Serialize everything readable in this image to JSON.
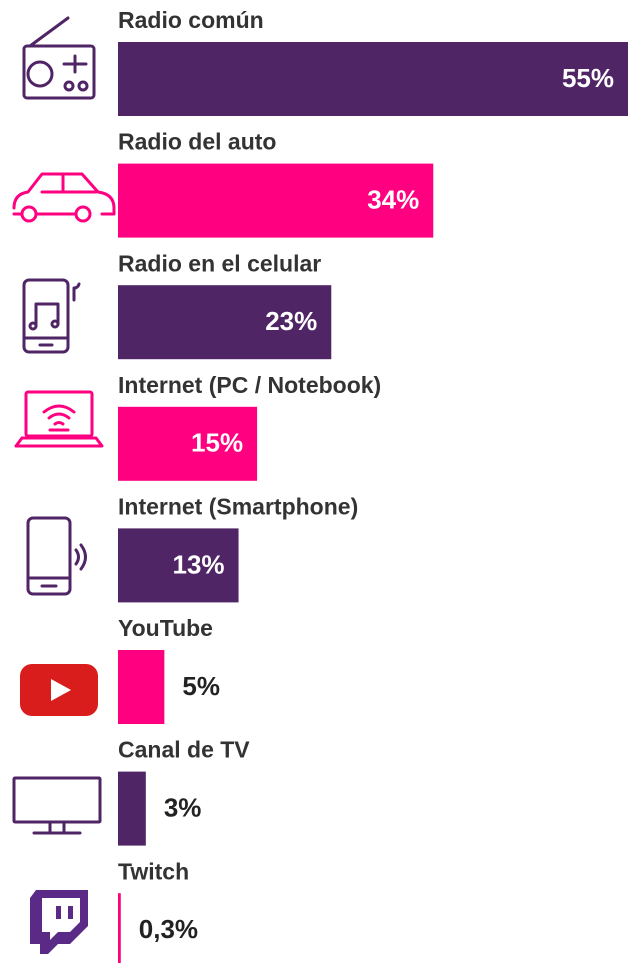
{
  "chart_data": {
    "type": "bar",
    "orientation": "horizontal",
    "categories": [
      "Radio común",
      "Radio del auto",
      "Radio en el celular",
      "Internet (PC / Notebook)",
      "Internet (Smartphone)",
      "YouTube",
      "Canal de TV",
      "Twitch"
    ],
    "values": [
      55,
      34,
      23,
      15,
      13,
      5,
      3,
      0.3
    ],
    "value_labels": [
      "55%",
      "34%",
      "23%",
      "15%",
      "13%",
      "5%",
      "3%",
      "0,3%"
    ],
    "colors": [
      "#4f2566",
      "#ff0080",
      "#4f2566",
      "#ff0080",
      "#4f2566",
      "#ff0080",
      "#4f2566",
      "#ff0080"
    ]
  }
}
